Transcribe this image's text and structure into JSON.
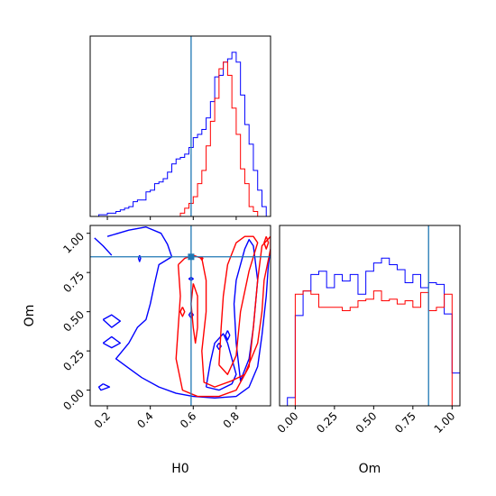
{
  "chart_data": [
    {
      "panel": "H0 marginal",
      "type": "histogram",
      "xlim": [
        0.12,
        0.96
      ],
      "bin_edges": [
        0.12,
        0.14,
        0.16,
        0.18,
        0.2,
        0.22,
        0.24,
        0.26,
        0.28,
        0.3,
        0.32,
        0.34,
        0.36,
        0.38,
        0.4,
        0.42,
        0.44,
        0.46,
        0.48,
        0.5,
        0.52,
        0.54,
        0.56,
        0.58,
        0.6,
        0.62,
        0.64,
        0.66,
        0.68,
        0.7,
        0.72,
        0.74,
        0.76,
        0.78,
        0.8,
        0.82,
        0.84,
        0.86,
        0.88,
        0.9,
        0.92,
        0.94,
        0.96
      ],
      "series": [
        {
          "color": "#0000ff",
          "values": [
            0,
            0,
            0.01,
            0.01,
            0.02,
            0.02,
            0.03,
            0.04,
            0.05,
            0.06,
            0.09,
            0.1,
            0.1,
            0.15,
            0.16,
            0.2,
            0.21,
            0.23,
            0.27,
            0.32,
            0.35,
            0.36,
            0.38,
            0.42,
            0.48,
            0.5,
            0.53,
            0.6,
            0.7,
            0.85,
            0.86,
            0.94,
            0.96,
            1.0,
            0.94,
            0.74,
            0.56,
            0.44,
            0.28,
            0.16,
            0.06,
            0
          ]
        },
        {
          "color": "#ff0000",
          "values": [
            0,
            0,
            0,
            0,
            0,
            0,
            0,
            0,
            0,
            0,
            0,
            0,
            0,
            0,
            0,
            0,
            0,
            0,
            0,
            0,
            0,
            0.02,
            0.05,
            0.08,
            0.12,
            0.2,
            0.28,
            0.43,
            0.58,
            0.72,
            0.9,
            0.94,
            0.86,
            0.66,
            0.5,
            0.29,
            0.2,
            0.06,
            0.03,
            0,
            0,
            0
          ]
        }
      ],
      "truth": {
        "x": 0.59
      }
    },
    {
      "panel": "Om vs H0 2D",
      "type": "contour",
      "xlabel": "H0",
      "ylabel": "Om",
      "xlim": [
        0.12,
        0.96
      ],
      "ylim": [
        -0.1,
        1.05
      ],
      "xticks": [
        {
          "v": 0.2,
          "label": "0.2"
        },
        {
          "v": 0.4,
          "label": "0.4"
        },
        {
          "v": 0.6,
          "label": "0.6"
        },
        {
          "v": 0.8,
          "label": "0.8"
        }
      ],
      "yticks": [
        {
          "v": 0.0,
          "label": "0.00"
        },
        {
          "v": 0.25,
          "label": "0.25"
        },
        {
          "v": 0.5,
          "label": "0.50"
        },
        {
          "v": 0.75,
          "label": "0.75"
        },
        {
          "v": 1.0,
          "label": "1.00"
        }
      ],
      "series": [
        {
          "color": "#0000ff",
          "contours": [
            [
              [
                0.2,
                0.98
              ],
              [
                0.3,
                1.02
              ],
              [
                0.38,
                1.04
              ],
              [
                0.45,
                1.0
              ],
              [
                0.48,
                0.93
              ],
              [
                0.5,
                0.85
              ],
              [
                0.44,
                0.8
              ],
              [
                0.42,
                0.68
              ],
              [
                0.4,
                0.55
              ],
              [
                0.38,
                0.45
              ],
              [
                0.34,
                0.4
              ],
              [
                0.3,
                0.3
              ],
              [
                0.24,
                0.2
              ],
              [
                0.3,
                0.14
              ],
              [
                0.36,
                0.08
              ],
              [
                0.44,
                0.02
              ],
              [
                0.52,
                -0.02
              ],
              [
                0.6,
                -0.04
              ],
              [
                0.7,
                -0.05
              ],
              [
                0.8,
                -0.04
              ],
              [
                0.86,
                0.02
              ],
              [
                0.9,
                0.15
              ],
              [
                0.92,
                0.35
              ],
              [
                0.94,
                0.6
              ],
              [
                0.95,
                0.8
              ],
              [
                0.96,
                0.9
              ]
            ],
            [
              [
                0.18,
                0.04
              ],
              [
                0.21,
                0.02
              ],
              [
                0.17,
                0.0
              ],
              [
                0.16,
                0.02
              ],
              [
                0.18,
                0.04
              ]
            ],
            [
              [
                0.35,
                0.86
              ],
              [
                0.355,
                0.84
              ],
              [
                0.35,
                0.82
              ],
              [
                0.345,
                0.84
              ],
              [
                0.35,
                0.86
              ]
            ],
            [
              [
                0.14,
                0.97
              ],
              [
                0.18,
                0.92
              ],
              [
                0.22,
                0.86
              ]
            ],
            [
              [
                0.18,
                0.3
              ],
              [
                0.22,
                0.34
              ],
              [
                0.26,
                0.3
              ],
              [
                0.22,
                0.27
              ],
              [
                0.18,
                0.3
              ]
            ],
            [
              [
                0.18,
                0.45
              ],
              [
                0.22,
                0.48
              ],
              [
                0.26,
                0.44
              ],
              [
                0.22,
                0.4
              ],
              [
                0.18,
                0.45
              ]
            ],
            [
              [
                0.66,
                0.02
              ],
              [
                0.68,
                0.18
              ],
              [
                0.7,
                0.3
              ],
              [
                0.74,
                0.36
              ],
              [
                0.76,
                0.3
              ],
              [
                0.8,
                0.1
              ],
              [
                0.78,
                0.04
              ],
              [
                0.72,
                0.0
              ],
              [
                0.66,
                0.02
              ]
            ],
            [
              [
                0.8,
                0.7
              ],
              [
                0.84,
                0.9
              ],
              [
                0.86,
                0.96
              ],
              [
                0.88,
                0.92
              ],
              [
                0.9,
                0.7
              ],
              [
                0.88,
                0.4
              ],
              [
                0.86,
                0.2
              ],
              [
                0.82,
                0.06
              ],
              [
                0.8,
                0.3
              ],
              [
                0.79,
                0.55
              ],
              [
                0.8,
                0.7
              ]
            ],
            [
              [
                0.59,
                0.5
              ],
              [
                0.6,
                0.48
              ],
              [
                0.59,
                0.46
              ],
              [
                0.58,
                0.48
              ],
              [
                0.59,
                0.5
              ]
            ],
            [
              [
                0.59,
                0.72
              ],
              [
                0.6,
                0.71
              ],
              [
                0.59,
                0.7
              ],
              [
                0.58,
                0.71
              ],
              [
                0.59,
                0.72
              ]
            ],
            [
              [
                0.72,
                0.3
              ],
              [
                0.73,
                0.28
              ],
              [
                0.72,
                0.26
              ],
              [
                0.71,
                0.28
              ],
              [
                0.72,
                0.3
              ]
            ],
            [
              [
                0.76,
                0.38
              ],
              [
                0.77,
                0.35
              ],
              [
                0.76,
                0.32
              ],
              [
                0.75,
                0.35
              ],
              [
                0.76,
                0.38
              ]
            ]
          ]
        },
        {
          "color": "#ff0000",
          "contours": [
            [
              [
                0.53,
                0.8
              ],
              [
                0.54,
                0.6
              ],
              [
                0.53,
                0.4
              ],
              [
                0.52,
                0.2
              ],
              [
                0.55,
                0.0
              ],
              [
                0.62,
                -0.04
              ],
              [
                0.72,
                -0.04
              ],
              [
                0.8,
                0.0
              ],
              [
                0.86,
                0.15
              ],
              [
                0.88,
                0.4
              ],
              [
                0.9,
                0.7
              ],
              [
                0.92,
                0.92
              ],
              [
                0.96,
                0.98
              ],
              [
                0.96,
                0.9
              ],
              [
                0.93,
                0.7
              ],
              [
                0.92,
                0.5
              ],
              [
                0.9,
                0.3
              ],
              [
                0.84,
                0.1
              ],
              [
                0.78,
                0.06
              ],
              [
                0.7,
                0.02
              ],
              [
                0.65,
                0.05
              ],
              [
                0.64,
                0.25
              ],
              [
                0.66,
                0.5
              ],
              [
                0.66,
                0.7
              ],
              [
                0.64,
                0.84
              ],
              [
                0.6,
                0.86
              ],
              [
                0.56,
                0.84
              ],
              [
                0.53,
                0.8
              ]
            ],
            [
              [
                0.72,
                0.16
              ],
              [
                0.73,
                0.4
              ],
              [
                0.74,
                0.6
              ],
              [
                0.76,
                0.8
              ],
              [
                0.8,
                0.94
              ],
              [
                0.84,
                0.98
              ],
              [
                0.88,
                0.98
              ],
              [
                0.9,
                0.94
              ],
              [
                0.86,
                0.76
              ],
              [
                0.82,
                0.5
              ],
              [
                0.8,
                0.22
              ],
              [
                0.76,
                0.1
              ],
              [
                0.72,
                0.16
              ]
            ],
            [
              [
                0.6,
                0.68
              ],
              [
                0.62,
                0.6
              ],
              [
                0.62,
                0.4
              ],
              [
                0.61,
                0.3
              ],
              [
                0.6,
                0.4
              ],
              [
                0.59,
                0.55
              ],
              [
                0.6,
                0.68
              ]
            ],
            [
              [
                0.64,
                0.85
              ],
              [
                0.645,
                0.84
              ],
              [
                0.64,
                0.83
              ],
              [
                0.635,
                0.84
              ],
              [
                0.64,
                0.85
              ]
            ],
            [
              [
                0.55,
                0.53
              ],
              [
                0.56,
                0.5
              ],
              [
                0.55,
                0.47
              ],
              [
                0.54,
                0.5
              ],
              [
                0.55,
                0.53
              ]
            ],
            [
              [
                0.94,
                0.98
              ],
              [
                0.95,
                0.94
              ],
              [
                0.94,
                0.9
              ],
              [
                0.93,
                0.94
              ],
              [
                0.94,
                0.98
              ]
            ]
          ]
        }
      ],
      "truth": {
        "x": 0.59,
        "y": 0.85
      }
    },
    {
      "panel": "Om marginal",
      "type": "histogram",
      "xlabel": "Om",
      "xlim": [
        -0.1,
        1.05
      ],
      "xticks": [
        {
          "v": 0.0,
          "label": "0.00"
        },
        {
          "v": 0.25,
          "label": "0.25"
        },
        {
          "v": 0.5,
          "label": "0.50"
        },
        {
          "v": 0.75,
          "label": "0.75"
        },
        {
          "v": 1.0,
          "label": "1.00"
        }
      ],
      "bin_edges": [
        -0.1,
        -0.05,
        0.0,
        0.05,
        0.1,
        0.15,
        0.2,
        0.25,
        0.3,
        0.35,
        0.4,
        0.45,
        0.5,
        0.55,
        0.6,
        0.65,
        0.7,
        0.75,
        0.8,
        0.85,
        0.9,
        0.95,
        1.0,
        1.05
      ],
      "series": [
        {
          "color": "#0000ff",
          "values": [
            0,
            0.05,
            0.55,
            0.7,
            0.8,
            0.82,
            0.72,
            0.8,
            0.76,
            0.8,
            0.68,
            0.82,
            0.87,
            0.9,
            0.86,
            0.83,
            0.75,
            0.8,
            0.72,
            0.75,
            0.74,
            0.56,
            0.2
          ]
        },
        {
          "color": "#ff0000",
          "values": [
            0,
            0,
            0.68,
            0.7,
            0.68,
            0.6,
            0.6,
            0.6,
            0.58,
            0.6,
            0.64,
            0.65,
            0.7,
            0.64,
            0.65,
            0.62,
            0.64,
            0.6,
            0.69,
            0.58,
            0.6,
            0.68,
            0
          ]
        }
      ],
      "truth": {
        "x": 0.85
      }
    }
  ]
}
